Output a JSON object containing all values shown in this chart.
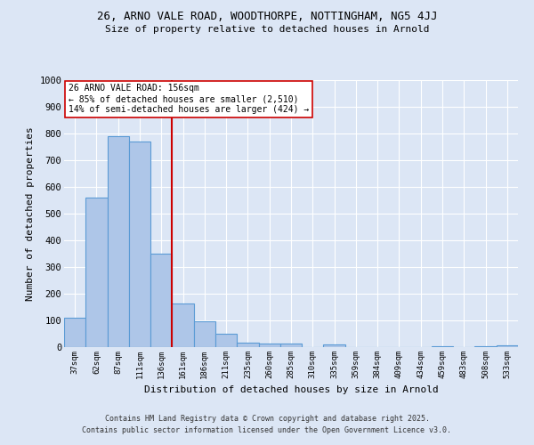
{
  "title_line1": "26, ARNO VALE ROAD, WOODTHORPE, NOTTINGHAM, NG5 4JJ",
  "title_line2": "Size of property relative to detached houses in Arnold",
  "xlabel": "Distribution of detached houses by size in Arnold",
  "ylabel": "Number of detached properties",
  "categories": [
    "37sqm",
    "62sqm",
    "87sqm",
    "111sqm",
    "136sqm",
    "161sqm",
    "186sqm",
    "211sqm",
    "235sqm",
    "260sqm",
    "285sqm",
    "310sqm",
    "335sqm",
    "359sqm",
    "384sqm",
    "409sqm",
    "434sqm",
    "459sqm",
    "483sqm",
    "508sqm",
    "533sqm"
  ],
  "values": [
    110,
    560,
    790,
    770,
    350,
    165,
    97,
    50,
    18,
    13,
    13,
    0,
    10,
    0,
    0,
    0,
    0,
    5,
    0,
    5,
    7
  ],
  "bar_color": "#aec6e8",
  "bar_edge_color": "#5b9bd5",
  "vline_x_index": 5,
  "vline_color": "#cc0000",
  "annotation_text": "26 ARNO VALE ROAD: 156sqm\n← 85% of detached houses are smaller (2,510)\n14% of semi-detached houses are larger (424) →",
  "annotation_box_color": "#ffffff",
  "annotation_box_edge_color": "#cc0000",
  "ylim": [
    0,
    1000
  ],
  "yticks": [
    0,
    100,
    200,
    300,
    400,
    500,
    600,
    700,
    800,
    900,
    1000
  ],
  "footnote1": "Contains HM Land Registry data © Crown copyright and database right 2025.",
  "footnote2": "Contains public sector information licensed under the Open Government Licence v3.0.",
  "bg_color": "#dce6f5",
  "plot_bg_color": "#dce6f5"
}
